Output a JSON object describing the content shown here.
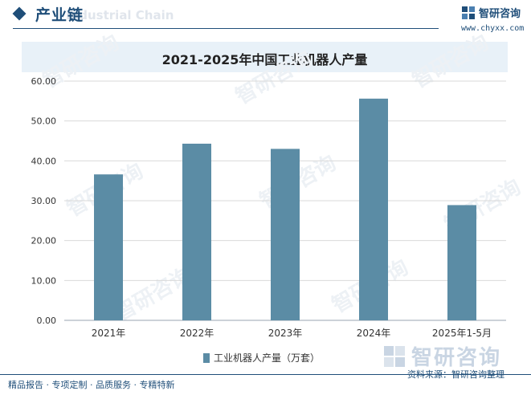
{
  "header": {
    "title": "产业链",
    "subtitle_en": "Industrial Chain",
    "brand_name": "智研咨询",
    "brand_url": "www.chyxx.com"
  },
  "chart_data": {
    "type": "bar",
    "title": "2021-2025年中国工业机器人产量",
    "categories": [
      "2021年",
      "2022年",
      "2023年",
      "2024年",
      "2025年1-5月"
    ],
    "series": [
      {
        "name": "工业机器人产量（万套）",
        "values": [
          36.6,
          44.3,
          43.0,
          55.6,
          28.9
        ]
      }
    ],
    "ylim": [
      0,
      60
    ],
    "yticks": [
      "0.00",
      "10.00",
      "20.00",
      "30.00",
      "40.00",
      "50.00",
      "60.00"
    ],
    "grid": true,
    "legend": "bottom-center",
    "bar_color": "#5b8ca5"
  },
  "watermark": {
    "text": "智研咨询"
  },
  "bottom_logo": {
    "text": "智研咨询"
  },
  "source": {
    "text": "资料来源：智研咨询整理"
  },
  "footer": {
    "text": "精品报告 · 专项定制 · 品质服务 · 专精特新"
  },
  "colors": {
    "accent": "#1f4e79",
    "title_bg": "#e8f1f8"
  }
}
